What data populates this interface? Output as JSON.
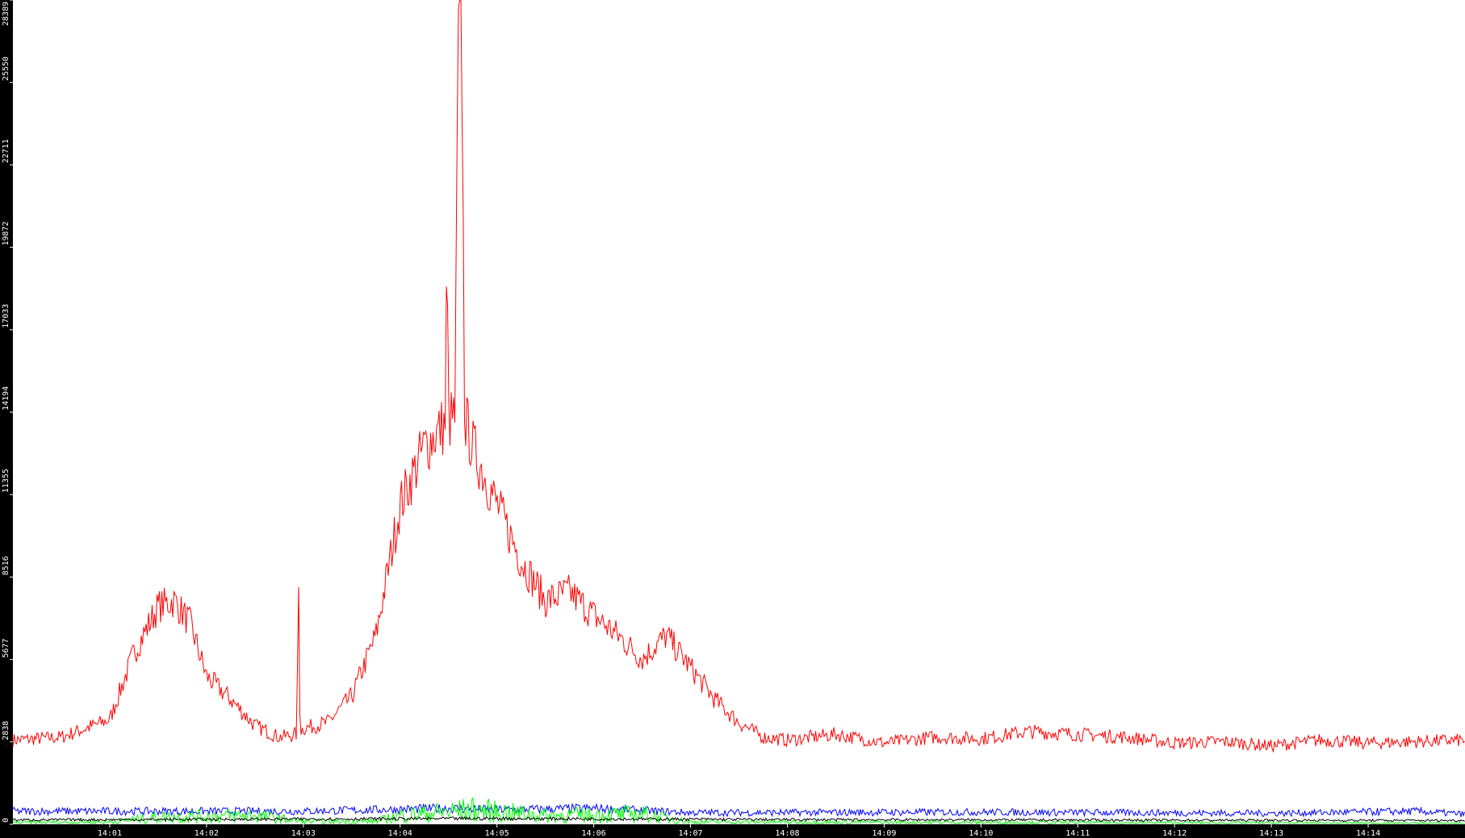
{
  "chart_data": {
    "type": "line",
    "title": "",
    "xlabel": "",
    "ylabel": "",
    "x_range": [
      "14:00:00",
      "14:15:00"
    ],
    "ylim": [
      0,
      28389
    ],
    "y_ticks": [
      "0",
      "2838",
      "5677",
      "8516",
      "11355",
      "14194",
      "17033",
      "19872",
      "22711",
      "25550",
      "28389"
    ],
    "x_ticks": [
      "14:01",
      "14:02",
      "14:03",
      "14:04",
      "14:05",
      "14:06",
      "14:07",
      "14:08",
      "14:09",
      "14:10",
      "14:11",
      "14:12",
      "14:13",
      "14:14"
    ],
    "grid": false,
    "background": "#ffffff",
    "axis_background": "#000000",
    "series": [
      {
        "color": "#ff0000",
        "noise": 0.08,
        "points": [
          [
            "14:00:00",
            2900
          ],
          [
            "14:00:30",
            3000
          ],
          [
            "14:01:00",
            3600
          ],
          [
            "14:01:15",
            5900
          ],
          [
            "14:01:30",
            7500
          ],
          [
            "14:01:40",
            7700
          ],
          [
            "14:01:50",
            6900
          ],
          [
            "14:02:00",
            5100
          ],
          [
            "14:02:15",
            4300
          ],
          [
            "14:02:30",
            3400
          ],
          [
            "14:02:45",
            3000
          ],
          [
            "14:02:56",
            3100
          ],
          [
            "14:02:57",
            8700
          ],
          [
            "14:02:58",
            3200
          ],
          [
            "14:03:00",
            3300
          ],
          [
            "14:03:15",
            3500
          ],
          [
            "14:03:30",
            4400
          ],
          [
            "14:03:45",
            6500
          ],
          [
            "14:04:00",
            11000
          ],
          [
            "14:04:15",
            13000
          ],
          [
            "14:04:28",
            13800
          ],
          [
            "14:04:29",
            19800
          ],
          [
            "14:04:30",
            13900
          ],
          [
            "14:04:34",
            14000
          ],
          [
            "14:04:36",
            27000
          ],
          [
            "14:04:38",
            28389
          ],
          [
            "14:04:40",
            14000
          ],
          [
            "14:04:45",
            13000
          ],
          [
            "14:05:00",
            11000
          ],
          [
            "14:05:15",
            9100
          ],
          [
            "14:05:30",
            7700
          ],
          [
            "14:05:45",
            8000
          ],
          [
            "14:06:00",
            7200
          ],
          [
            "14:06:15",
            6500
          ],
          [
            "14:06:30",
            5700
          ],
          [
            "14:06:45",
            6500
          ],
          [
            "14:07:00",
            5400
          ],
          [
            "14:07:15",
            4300
          ],
          [
            "14:07:30",
            3500
          ],
          [
            "14:07:45",
            3000
          ],
          [
            "14:08:00",
            2900
          ],
          [
            "14:08:30",
            3100
          ],
          [
            "14:09:00",
            2800
          ],
          [
            "14:09:30",
            3000
          ],
          [
            "14:10:00",
            2950
          ],
          [
            "14:10:30",
            3200
          ],
          [
            "14:11:00",
            3100
          ],
          [
            "14:11:30",
            3000
          ],
          [
            "14:12:00",
            2800
          ],
          [
            "14:12:30",
            2850
          ],
          [
            "14:13:00",
            2700
          ],
          [
            "14:13:30",
            2900
          ],
          [
            "14:14:00",
            2800
          ],
          [
            "14:14:30",
            2850
          ],
          [
            "14:15:00",
            2900
          ]
        ]
      },
      {
        "color": "#0000ff",
        "noise": 0.3,
        "points": [
          [
            "14:00:00",
            450
          ],
          [
            "14:03:00",
            450
          ],
          [
            "14:04:30",
            550
          ],
          [
            "14:05:00",
            500
          ],
          [
            "14:06:00",
            550
          ],
          [
            "14:07:00",
            400
          ],
          [
            "14:10:00",
            420
          ],
          [
            "14:13:00",
            380
          ],
          [
            "14:14:30",
            450
          ],
          [
            "14:15:00",
            350
          ]
        ]
      },
      {
        "color": "#00ff00",
        "noise": 0.9,
        "points": [
          [
            "14:00:00",
            60
          ],
          [
            "14:01:00",
            80
          ],
          [
            "14:01:30",
            250
          ],
          [
            "14:02:30",
            300
          ],
          [
            "14:03:00",
            100
          ],
          [
            "14:03:45",
            100
          ],
          [
            "14:04:00",
            300
          ],
          [
            "14:04:45",
            500
          ],
          [
            "14:05:30",
            300
          ],
          [
            "14:06:30",
            350
          ],
          [
            "14:07:00",
            80
          ],
          [
            "14:15:00",
            40
          ]
        ]
      },
      {
        "color": "#000000",
        "noise": 0.3,
        "points": [
          [
            "14:00:00",
            150
          ],
          [
            "14:05:00",
            200
          ],
          [
            "14:08:00",
            160
          ],
          [
            "14:15:00",
            130
          ]
        ]
      }
    ]
  }
}
